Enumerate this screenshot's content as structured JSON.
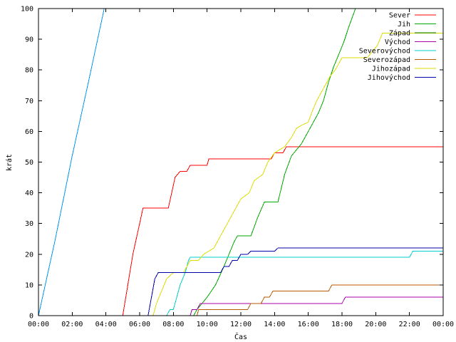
{
  "chart_data": {
    "type": "line",
    "title": "",
    "xlabel": "Čas",
    "ylabel": "krát",
    "xlim": [
      0,
      24
    ],
    "ylim": [
      0,
      100
    ],
    "x_ticks": [
      "00:00",
      "02:00",
      "04:00",
      "06:00",
      "08:00",
      "10:00",
      "12:00",
      "14:00",
      "16:00",
      "18:00",
      "20:00",
      "22:00",
      "00:00"
    ],
    "y_ticks": [
      0,
      10,
      20,
      30,
      40,
      50,
      60,
      70,
      80,
      90,
      100
    ],
    "grid": false,
    "legend_position": "top-right",
    "series": [
      {
        "name": "Sever",
        "color": "#ff0000",
        "points": [
          [
            5.0,
            0
          ],
          [
            5.3,
            10
          ],
          [
            5.6,
            20
          ],
          [
            6.0,
            30
          ],
          [
            6.2,
            35
          ],
          [
            7.7,
            35
          ],
          [
            7.9,
            40
          ],
          [
            8.1,
            45
          ],
          [
            8.4,
            47
          ],
          [
            8.8,
            47
          ],
          [
            9.0,
            49
          ],
          [
            10.0,
            49
          ],
          [
            10.1,
            51
          ],
          [
            13.8,
            51
          ],
          [
            14.0,
            53
          ],
          [
            14.5,
            53
          ],
          [
            14.7,
            55
          ],
          [
            24,
            55
          ]
        ]
      },
      {
        "name": "Jih",
        "color": "#00aa00",
        "points": [
          [
            9.2,
            0
          ],
          [
            9.4,
            2
          ],
          [
            9.7,
            4
          ],
          [
            10.0,
            6
          ],
          [
            10.5,
            10
          ],
          [
            11.0,
            16
          ],
          [
            11.3,
            20
          ],
          [
            11.6,
            24
          ],
          [
            11.8,
            26
          ],
          [
            12.6,
            26
          ],
          [
            13.0,
            32
          ],
          [
            13.4,
            37
          ],
          [
            14.2,
            37
          ],
          [
            14.6,
            46
          ],
          [
            15.0,
            52
          ],
          [
            15.3,
            54
          ],
          [
            15.6,
            56
          ],
          [
            16.0,
            60
          ],
          [
            16.3,
            63
          ],
          [
            16.6,
            66
          ],
          [
            16.9,
            70
          ],
          [
            17.2,
            76
          ],
          [
            17.5,
            81
          ],
          [
            17.8,
            85
          ],
          [
            18.1,
            89
          ],
          [
            18.4,
            94
          ],
          [
            18.8,
            100
          ]
        ]
      },
      {
        "name": "Západ",
        "color": "#007700",
        "points": []
      },
      {
        "name": "Východ",
        "color": "#aa00aa",
        "points": [
          [
            9.0,
            0
          ],
          [
            9.1,
            2
          ],
          [
            9.4,
            2
          ],
          [
            9.6,
            4
          ],
          [
            18.0,
            4
          ],
          [
            18.2,
            6
          ],
          [
            24,
            6
          ]
        ]
      },
      {
        "name": "Severovýchod",
        "color": "#00cccc",
        "points": [
          [
            7.6,
            0
          ],
          [
            7.8,
            2
          ],
          [
            8.0,
            2
          ],
          [
            8.2,
            6
          ],
          [
            8.4,
            10
          ],
          [
            8.7,
            14
          ],
          [
            8.9,
            18
          ],
          [
            9.0,
            19
          ],
          [
            22.0,
            19
          ],
          [
            22.2,
            21
          ],
          [
            24,
            21
          ]
        ]
      },
      {
        "name": "Severozápad",
        "color": "#b85a00",
        "points": [
          [
            9.4,
            0
          ],
          [
            9.5,
            2
          ],
          [
            12.4,
            2
          ],
          [
            12.6,
            4
          ],
          [
            13.2,
            4
          ],
          [
            13.4,
            6
          ],
          [
            13.7,
            6
          ],
          [
            13.9,
            8
          ],
          [
            17.2,
            8
          ],
          [
            17.4,
            10
          ],
          [
            24,
            10
          ]
        ]
      },
      {
        "name": "Jihozápad",
        "color": "#dddd00",
        "points": [
          [
            6.8,
            0
          ],
          [
            7.0,
            4
          ],
          [
            7.3,
            8
          ],
          [
            7.6,
            12
          ],
          [
            8.0,
            14
          ],
          [
            8.6,
            14
          ],
          [
            9.0,
            18
          ],
          [
            9.5,
            18
          ],
          [
            9.8,
            20
          ],
          [
            10.4,
            22
          ],
          [
            10.8,
            26
          ],
          [
            11.2,
            30
          ],
          [
            11.6,
            34
          ],
          [
            12.0,
            38
          ],
          [
            12.5,
            40
          ],
          [
            12.8,
            44
          ],
          [
            13.3,
            46
          ],
          [
            13.6,
            50
          ],
          [
            14.0,
            53
          ],
          [
            14.6,
            55
          ],
          [
            15.0,
            58
          ],
          [
            15.3,
            61
          ],
          [
            15.6,
            62
          ],
          [
            16.0,
            63
          ],
          [
            16.2,
            66
          ],
          [
            16.5,
            70
          ],
          [
            16.9,
            74
          ],
          [
            17.3,
            78
          ],
          [
            17.6,
            80
          ],
          [
            18.0,
            84
          ],
          [
            19.5,
            84
          ],
          [
            19.8,
            86
          ],
          [
            20.1,
            88
          ],
          [
            20.4,
            92
          ],
          [
            24,
            92
          ]
        ]
      },
      {
        "name": "Jihovýchod",
        "color": "#0000aa",
        "points": [
          [
            6.5,
            0
          ],
          [
            6.7,
            6
          ],
          [
            6.9,
            12
          ],
          [
            7.1,
            14
          ],
          [
            10.8,
            14
          ],
          [
            11.0,
            16
          ],
          [
            11.3,
            16
          ],
          [
            11.5,
            18
          ],
          [
            11.8,
            18
          ],
          [
            12.0,
            20
          ],
          [
            12.4,
            20
          ],
          [
            12.6,
            21
          ],
          [
            14.0,
            21
          ],
          [
            14.2,
            22
          ],
          [
            24,
            22
          ]
        ]
      },
      {
        "name": "",
        "color": "#0099ee",
        "points": [
          [
            0.0,
            0
          ],
          [
            1.0,
            25
          ],
          [
            2.0,
            52
          ],
          [
            3.0,
            77
          ],
          [
            3.9,
            100
          ]
        ]
      }
    ]
  }
}
